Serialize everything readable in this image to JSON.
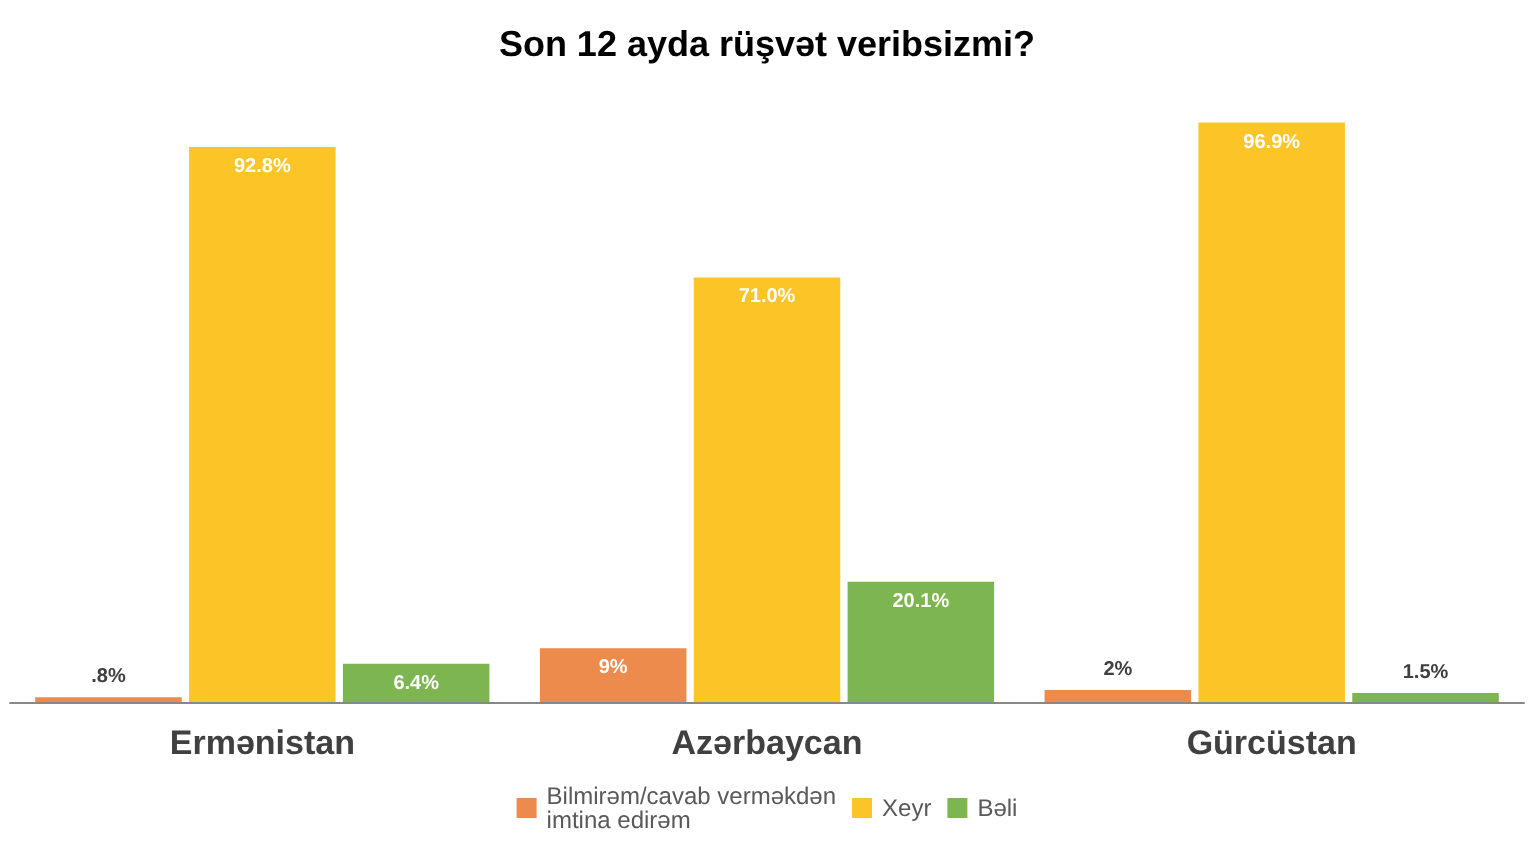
{
  "chart_data": {
    "type": "bar",
    "title": "Son 12 ayda rüşvət veribsizmi?",
    "categories": [
      "Ermənistan",
      "Azərbaycan",
      "Gürcüstan"
    ],
    "series": [
      {
        "name": "Bilmirəm/cavab verməkdən imtina edirəm",
        "color": "#ed8b4c",
        "values": [
          0.8,
          9,
          2
        ],
        "value_labels": [
          ".8%",
          "9%",
          "2%"
        ]
      },
      {
        "name": "Xeyr",
        "color": "#fcc527",
        "values": [
          92.8,
          71.0,
          96.9
        ],
        "value_labels": [
          "92.8%",
          "71.0%",
          "96.9%"
        ]
      },
      {
        "name": "Bəli",
        "color": "#7db650",
        "values": [
          6.4,
          20.1,
          1.5
        ],
        "value_labels": [
          "6.4%",
          "20.1%",
          "1.5%"
        ]
      }
    ],
    "legend": "bottom"
  }
}
